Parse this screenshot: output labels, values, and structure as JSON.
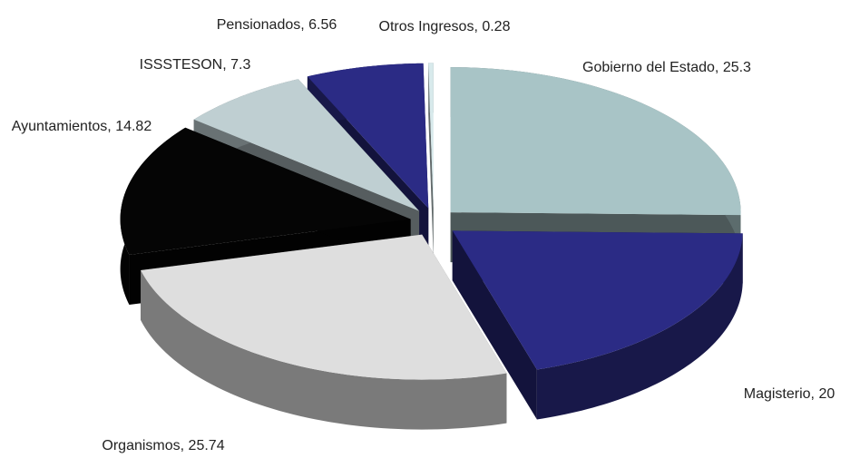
{
  "chart_data": {
    "type": "pie3d",
    "labels": [
      "Gobierno del Estado, 25.3",
      "Magisterio, 20",
      "Organismos, 25.74",
      "Ayuntamientos, 14.82",
      "ISSSTESON, 7.3",
      "Pensionados, 6.56",
      "Otros Ingresos, 0.28"
    ],
    "values": [
      25.3,
      20,
      25.74,
      14.82,
      7.3,
      6.56,
      0.28
    ],
    "colors": [
      "#a8c4c6",
      "#2b2b85",
      "#dedede",
      "#050505",
      "#bfcfd2",
      "#2b2b85",
      "#d8eaec"
    ]
  }
}
